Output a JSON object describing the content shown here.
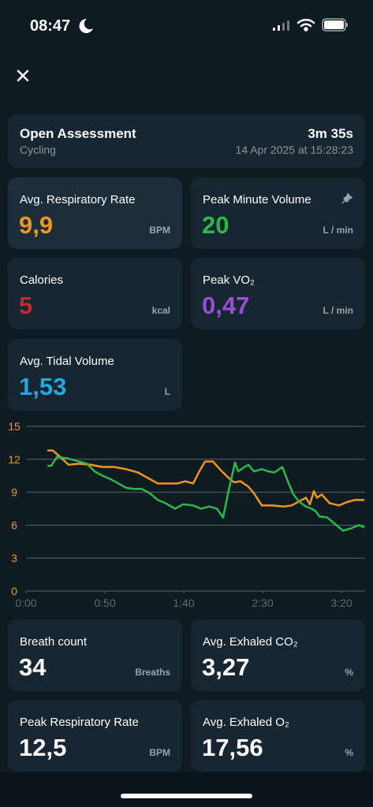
{
  "status_bar": {
    "time": "08:47"
  },
  "header": {
    "title": "Open Assessment",
    "subtitle": "Cycling",
    "duration": "3m 35s",
    "date": "14 Apr 2025 at 15:28:23"
  },
  "metrics": [
    {
      "label": "Avg. Respiratory Rate",
      "value": "9,9",
      "unit": "BPM",
      "color": "#f0961e"
    },
    {
      "label": "Peak Minute Volume",
      "value": "20",
      "unit": "L / min",
      "color": "#2eb84a"
    },
    {
      "label": "Calories",
      "value": "5",
      "unit": "kcal",
      "color": "#c9272b"
    },
    {
      "label": "Peak VO₂",
      "value": "0,47",
      "unit": "L / min",
      "color": "#9b4fd6"
    },
    {
      "label": "Avg. Tidal Volume",
      "value": "1,53",
      "unit": "L",
      "color": "#2aa5e0"
    },
    {
      "label": "Breath count",
      "value": "34",
      "unit": "Breaths",
      "color": "#ffffff"
    },
    {
      "label": "Avg. Exhaled CO₂",
      "value": "3,27",
      "unit": "%",
      "color": "#ffffff"
    },
    {
      "label": "Peak Respiratory Rate",
      "value": "12,5",
      "unit": "BPM",
      "color": "#ffffff"
    },
    {
      "label": "Avg. Exhaled O₂",
      "value": "17,56",
      "unit": "%",
      "color": "#ffffff"
    }
  ],
  "chart_data": {
    "type": "line",
    "xlim": [
      0,
      215
    ],
    "ylim": [
      0,
      15
    ],
    "xticks": [
      {
        "value": 0,
        "label": "0:00"
      },
      {
        "value": 50,
        "label": "0:50"
      },
      {
        "value": 100,
        "label": "1:40"
      },
      {
        "value": 150,
        "label": "2:30"
      },
      {
        "value": 200,
        "label": "3:20"
      }
    ],
    "yticks": [
      0,
      3,
      6,
      9,
      12,
      15
    ],
    "grid": true,
    "series": [
      {
        "color": "#f0961e",
        "x": [
          13.5,
          17,
          21,
          27,
          33.5,
          41,
          48.5,
          56,
          63.5,
          71,
          78.5,
          83.5,
          91,
          96,
          101,
          106,
          109.5,
          113.5,
          118.5,
          123.5,
          128.5,
          132,
          136,
          141,
          144.5,
          149.5,
          156,
          163.5,
          168.5,
          173.5,
          177.5,
          180,
          182.5,
          184.5,
          187.5,
          192.5,
          198.5,
          203.5,
          208.5,
          214.5
        ],
        "values": [
          12.8,
          12.8,
          12.3,
          11.5,
          11.6,
          11.5,
          11.3,
          11.3,
          11.1,
          10.8,
          10.2,
          9.8,
          9.8,
          9.8,
          10.0,
          9.8,
          10.8,
          11.8,
          11.8,
          11.0,
          10.3,
          9.9,
          10.0,
          9.5,
          8.9,
          7.8,
          7.8,
          7.7,
          7.8,
          8.2,
          8.5,
          7.9,
          9.1,
          8.5,
          8.8,
          8.0,
          7.8,
          8.1,
          8.3,
          8.3
        ]
      },
      {
        "color": "#2eb84a",
        "x": [
          13.5,
          16,
          19.5,
          26,
          33.5,
          38.5,
          43.5,
          48.5,
          53.5,
          58.5,
          63.5,
          68.5,
          73.5,
          78.5,
          83.5,
          88.5,
          94.5,
          99.5,
          106,
          111,
          116,
          121,
          125,
          128.5,
          132.5,
          134.5,
          138.5,
          141,
          144.5,
          149.5,
          153.5,
          157.5,
          162.5,
          166,
          169.5,
          173.5,
          177.5,
          181,
          183.5,
          186,
          191,
          196,
          201,
          206,
          211,
          214.5
        ],
        "values": [
          11.4,
          11.4,
          12.2,
          12.1,
          11.8,
          11.6,
          10.9,
          10.5,
          10.2,
          9.8,
          9.4,
          9.3,
          9.3,
          8.9,
          8.3,
          8.0,
          7.5,
          7.9,
          7.8,
          7.5,
          7.7,
          7.5,
          6.7,
          9.2,
          11.7,
          10.9,
          11.3,
          11.5,
          10.9,
          11.1,
          10.9,
          10.8,
          11.3,
          10.0,
          8.8,
          8.1,
          7.7,
          7.5,
          7.3,
          6.8,
          6.7,
          6.1,
          5.5,
          5.7,
          6.0,
          5.8
        ]
      }
    ]
  }
}
